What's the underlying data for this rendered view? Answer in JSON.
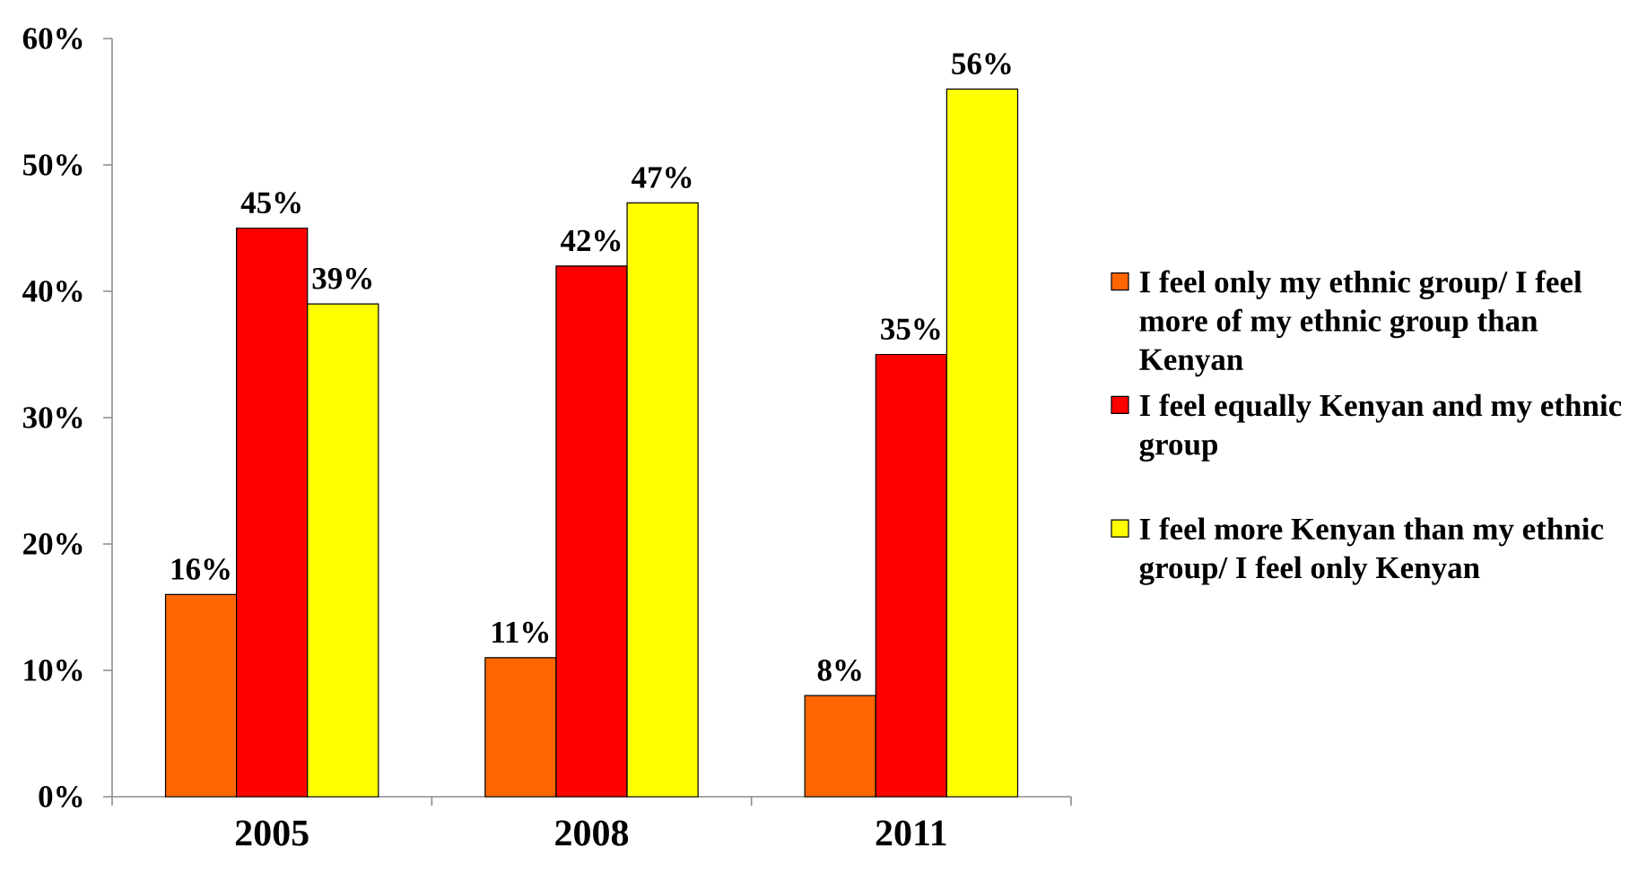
{
  "chart_data": {
    "type": "bar",
    "categories": [
      "2005",
      "2008",
      "2011"
    ],
    "series": [
      {
        "name": "I feel only my ethnic group/ I feel more of my ethnic group than Kenyan",
        "color": "#ff6600",
        "values": [
          16,
          11,
          8
        ],
        "value_labels": [
          "16%",
          "11%",
          "8%"
        ]
      },
      {
        "name": "I feel equally Kenyan and my ethnic group",
        "color": "#ff0000",
        "values": [
          45,
          42,
          35
        ],
        "value_labels": [
          "45%",
          "42%",
          "35%"
        ]
      },
      {
        "name": "I feel more Kenyan than my ethnic group/ I feel only Kenyan",
        "color": "#ffff00",
        "values": [
          39,
          47,
          56
        ],
        "value_labels": [
          "39%",
          "47%",
          "56%"
        ]
      }
    ],
    "ylim": [
      0,
      60
    ],
    "yticks": [
      {
        "value": 0,
        "label": "0%"
      },
      {
        "value": 10,
        "label": "10%"
      },
      {
        "value": 20,
        "label": "20%"
      },
      {
        "value": 30,
        "label": "30%"
      },
      {
        "value": 40,
        "label": "40%"
      },
      {
        "value": 50,
        "label": "50%"
      },
      {
        "value": 60,
        "label": "60%"
      }
    ],
    "legend": "right"
  }
}
